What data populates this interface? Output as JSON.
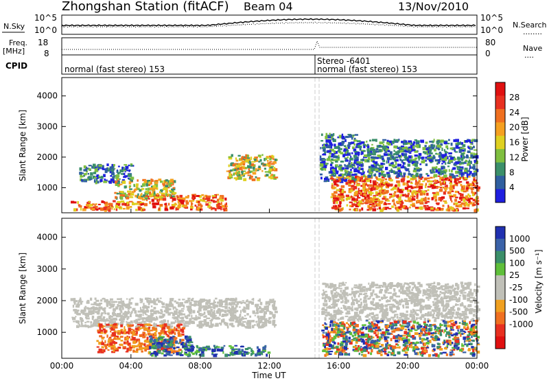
{
  "header": {
    "station": "Zhongshan Station (fitACF)",
    "beam": "Beam 04",
    "date": "13/Nov/2010"
  },
  "top_panels": {
    "nsky_label": "N.Sky",
    "nsearch_label": "N.Search",
    "nsearch_line": "........",
    "freq_label": "Freq.",
    "freq_unit": "[MHz]",
    "nave_label": "Nave",
    "nave_line": "....",
    "cpid_label": "CPID",
    "noise_ticks": [
      "10^5",
      "10^0"
    ],
    "noise_right_ticks": [
      "10^5",
      "10^0"
    ],
    "freq_ticks": [
      "18",
      "8"
    ],
    "nave_ticks": [
      "80",
      "0"
    ],
    "cpid_segments": [
      "normal (fast stereo) 153",
      "normal (fast stereo) 153"
    ],
    "cpid_marker": "Stereo -6401"
  },
  "colors": {
    "power_scale": [
      "#1f1fe0",
      "#2f5fa0",
      "#3b8f6a",
      "#7fbf3f",
      "#dfd020",
      "#f5a020",
      "#f07020",
      "#e83020",
      "#e01010"
    ],
    "velocity_scale": [
      "#2030b0",
      "#3a62a8",
      "#3b8f6a",
      "#5fbf3a",
      "#c0c0b8",
      "#c0c0b8",
      "#f0a020",
      "#f07020",
      "#e83020",
      "#e01010"
    ]
  },
  "chart_data": [
    {
      "type": "heatmap",
      "name": "power",
      "xlabel": "Time UT",
      "ylabel": "Slant Range [km]",
      "xticks": [
        "00:00",
        "04:00",
        "08:00",
        "12:00",
        "16:00",
        "20:00",
        "00:00"
      ],
      "xlim_hours": [
        0,
        24
      ],
      "yticks": [
        "1000",
        "2000",
        "3000",
        "4000"
      ],
      "ylim": [
        180,
        4600
      ],
      "grid": false,
      "colorbar": {
        "label": "Power [dB]",
        "ticks": [
          "4",
          "8",
          "12",
          "16",
          "20",
          "24",
          "28"
        ],
        "range": [
          0,
          32
        ]
      },
      "echo_regions": [
        {
          "t0": 0.5,
          "t1": 4.5,
          "r0": 300,
          "r1": 600,
          "level": "high"
        },
        {
          "t0": 4.5,
          "t1": 9.5,
          "r0": 300,
          "r1": 800,
          "level": "high"
        },
        {
          "t0": 1.0,
          "t1": 4.0,
          "r0": 1200,
          "r1": 1800,
          "level": "low"
        },
        {
          "t0": 3.0,
          "t1": 6.5,
          "r0": 700,
          "r1": 1300,
          "level": "mid"
        },
        {
          "t0": 9.5,
          "t1": 12.3,
          "r0": 1300,
          "r1": 2100,
          "level": "mid"
        },
        {
          "t0": 14.9,
          "t1": 17.0,
          "r0": 1200,
          "r1": 2800,
          "level": "low"
        },
        {
          "t0": 15.5,
          "t1": 24.0,
          "r0": 300,
          "r1": 1400,
          "level": "high"
        },
        {
          "t0": 17.0,
          "t1": 24.0,
          "r0": 1400,
          "r1": 2600,
          "level": "low"
        }
      ]
    },
    {
      "type": "heatmap",
      "name": "velocity",
      "xlabel": "Time UT",
      "ylabel": "Slant Range [km]",
      "xticks": [
        "00:00",
        "04:00",
        "08:00",
        "12:00",
        "16:00",
        "20:00",
        "00:00"
      ],
      "xlim_hours": [
        0,
        24
      ],
      "yticks": [
        "1000",
        "2000",
        "3000",
        "4000"
      ],
      "ylim": [
        180,
        4600
      ],
      "grid": false,
      "colorbar": {
        "label": "Velocity [m s⁻¹]",
        "ticks": [
          "1000",
          "500",
          "100",
          "25",
          "-25",
          "-100",
          "-500",
          "-1000"
        ]
      },
      "echo_regions": [
        {
          "t0": 0.5,
          "t1": 12.3,
          "r0": 1200,
          "r1": 2100,
          "level": "ground"
        },
        {
          "t0": 2.0,
          "t1": 7.0,
          "r0": 400,
          "r1": 1300,
          "level": "away"
        },
        {
          "t0": 5.0,
          "t1": 7.5,
          "r0": 300,
          "r1": 900,
          "level": "toward"
        },
        {
          "t0": 7.0,
          "t1": 12.0,
          "r0": 300,
          "r1": 600,
          "level": "toward"
        },
        {
          "t0": 15.0,
          "t1": 24.0,
          "r0": 1400,
          "r1": 2600,
          "level": "ground"
        },
        {
          "t0": 15.0,
          "t1": 24.0,
          "r0": 300,
          "r1": 1400,
          "level": "mixed"
        }
      ]
    }
  ]
}
